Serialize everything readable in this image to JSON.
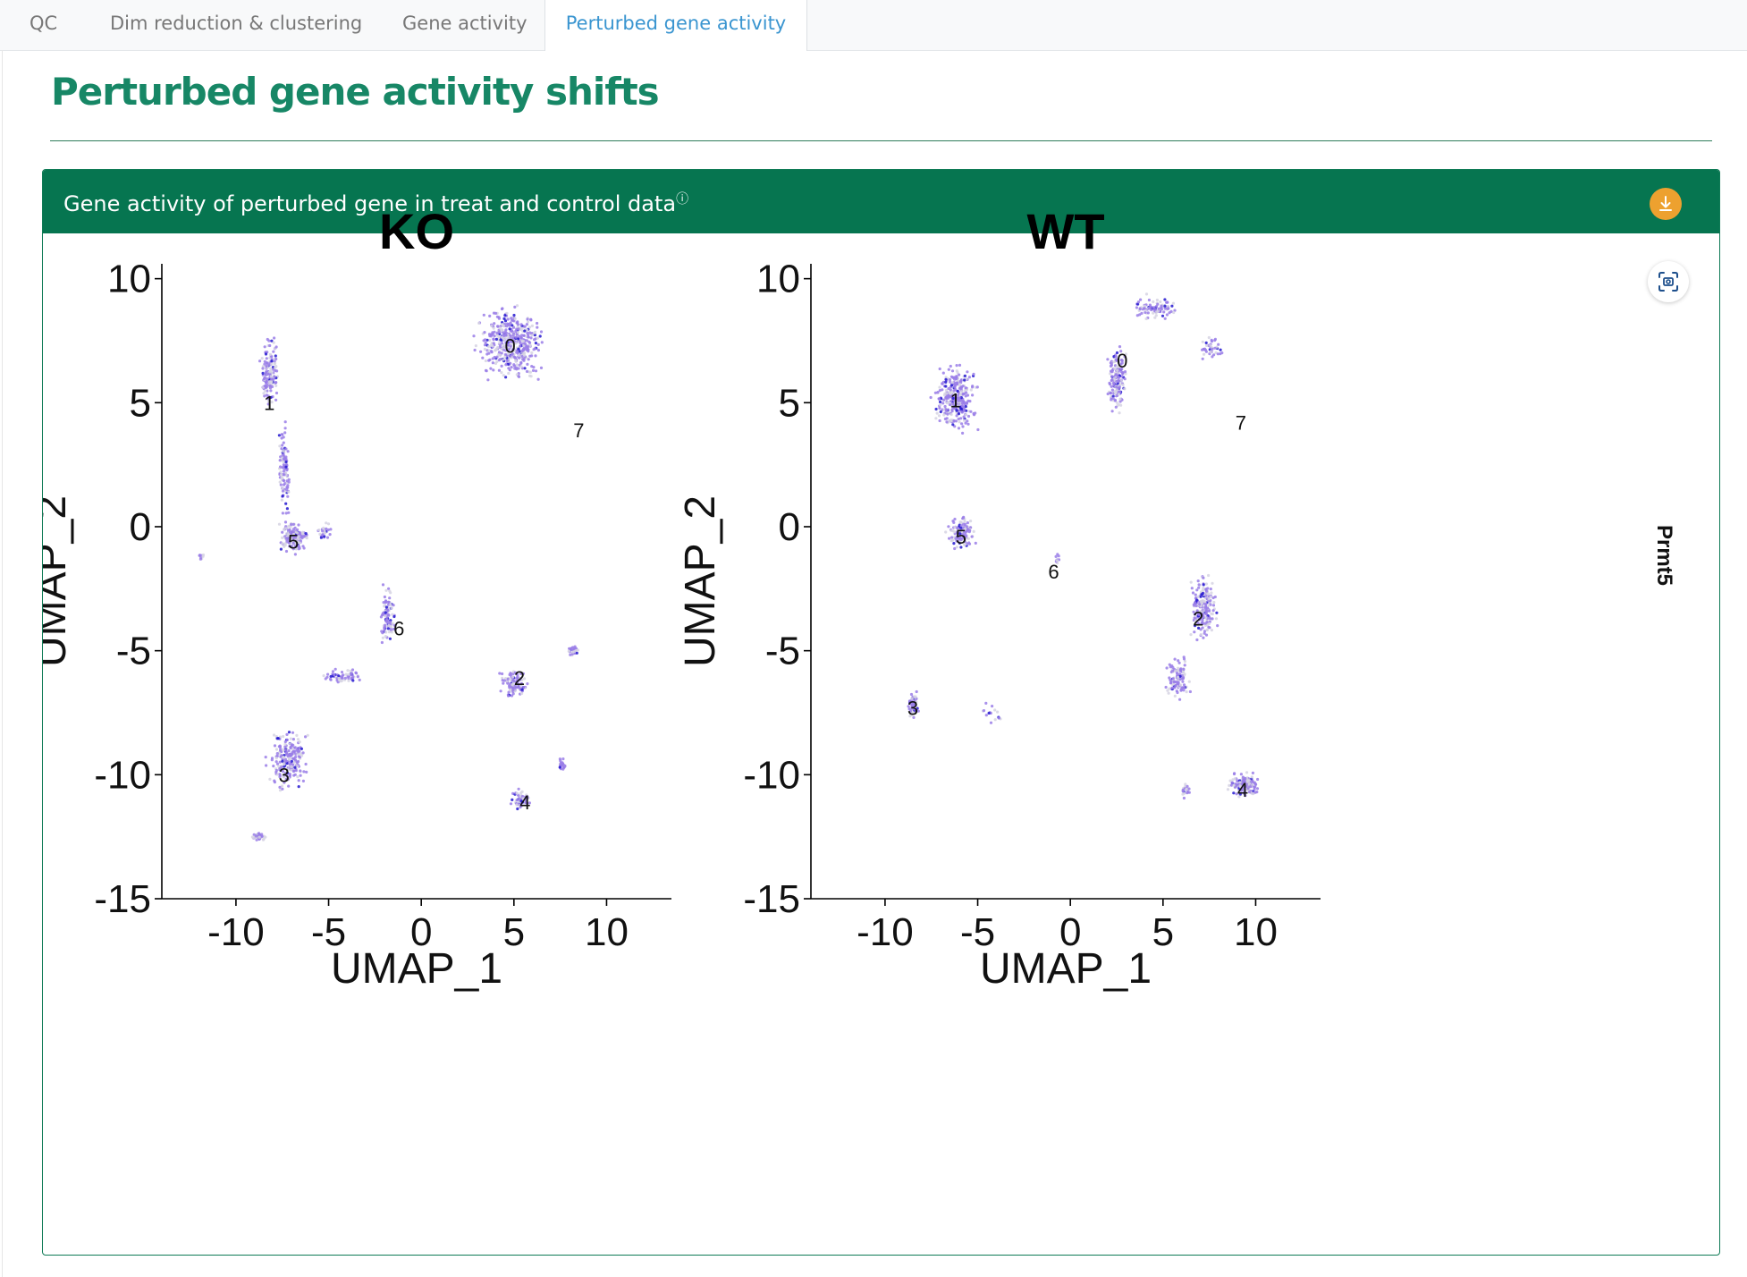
{
  "tabs": [
    {
      "label": "QC",
      "active": false
    },
    {
      "label": "Dim reduction & clustering",
      "active": false
    },
    {
      "label": "Gene activity",
      "active": false
    },
    {
      "label": "Perturbed gene activity",
      "active": true
    }
  ],
  "page": {
    "title": "Perturbed gene activity shifts"
  },
  "card": {
    "title": "Gene activity of perturbed gene in treat and control data",
    "info_marker": "ⓘ",
    "download_icon": "download-icon",
    "screenshot_icon": "screenshot-icon"
  },
  "colors": {
    "accent_green": "#067550",
    "title_green": "#178766",
    "active_tab": "#3a95d0",
    "download_orange": "#eda12f",
    "point_low": "#d6d3e3",
    "point_mid": "#9a7ee8",
    "point_high": "#2418d0"
  },
  "chart_data": [
    {
      "type": "scatter",
      "title": "KO",
      "xlabel": "UMAP_1",
      "ylabel": "UMAP_2",
      "xlim": [
        -14,
        13.5
      ],
      "ylim": [
        -15,
        10.6
      ],
      "xticks": [
        -10,
        -5,
        0,
        5,
        10
      ],
      "yticks": [
        10,
        5,
        0,
        -5,
        -10,
        -15
      ],
      "grid": false,
      "clusters": [
        {
          "label": "0",
          "x": 4.8,
          "y": 7.3
        },
        {
          "label": "1",
          "x": -8.2,
          "y": 5.0
        },
        {
          "label": "2",
          "x": 5.3,
          "y": -6.1
        },
        {
          "label": "3",
          "x": -7.4,
          "y": -10.0
        },
        {
          "label": "4",
          "x": 5.6,
          "y": -11.1
        },
        {
          "label": "5",
          "x": -6.9,
          "y": -0.6
        },
        {
          "label": "6",
          "x": -1.2,
          "y": -4.1
        },
        {
          "label": "7",
          "x": 8.5,
          "y": 3.9
        }
      ]
    },
    {
      "type": "scatter",
      "title": "WT",
      "xlabel": "UMAP_1",
      "ylabel": "UMAP_2",
      "xlim": [
        -14,
        13.5
      ],
      "ylim": [
        -15,
        10.6
      ],
      "xticks": [
        -10,
        -5,
        0,
        5,
        10
      ],
      "yticks": [
        10,
        5,
        0,
        -5,
        -10,
        -15
      ],
      "grid": false,
      "side_label": "Prmt5",
      "clusters": [
        {
          "label": "0",
          "x": 2.8,
          "y": 6.7
        },
        {
          "label": "1",
          "x": -6.2,
          "y": 5.1
        },
        {
          "label": "2",
          "x": 6.9,
          "y": -3.7
        },
        {
          "label": "3",
          "x": -8.5,
          "y": -7.3
        },
        {
          "label": "4",
          "x": 9.3,
          "y": -10.6
        },
        {
          "label": "5",
          "x": -5.9,
          "y": -0.4
        },
        {
          "label": "6",
          "x": -0.9,
          "y": -1.8
        },
        {
          "label": "7",
          "x": 9.2,
          "y": 4.2
        }
      ]
    }
  ]
}
